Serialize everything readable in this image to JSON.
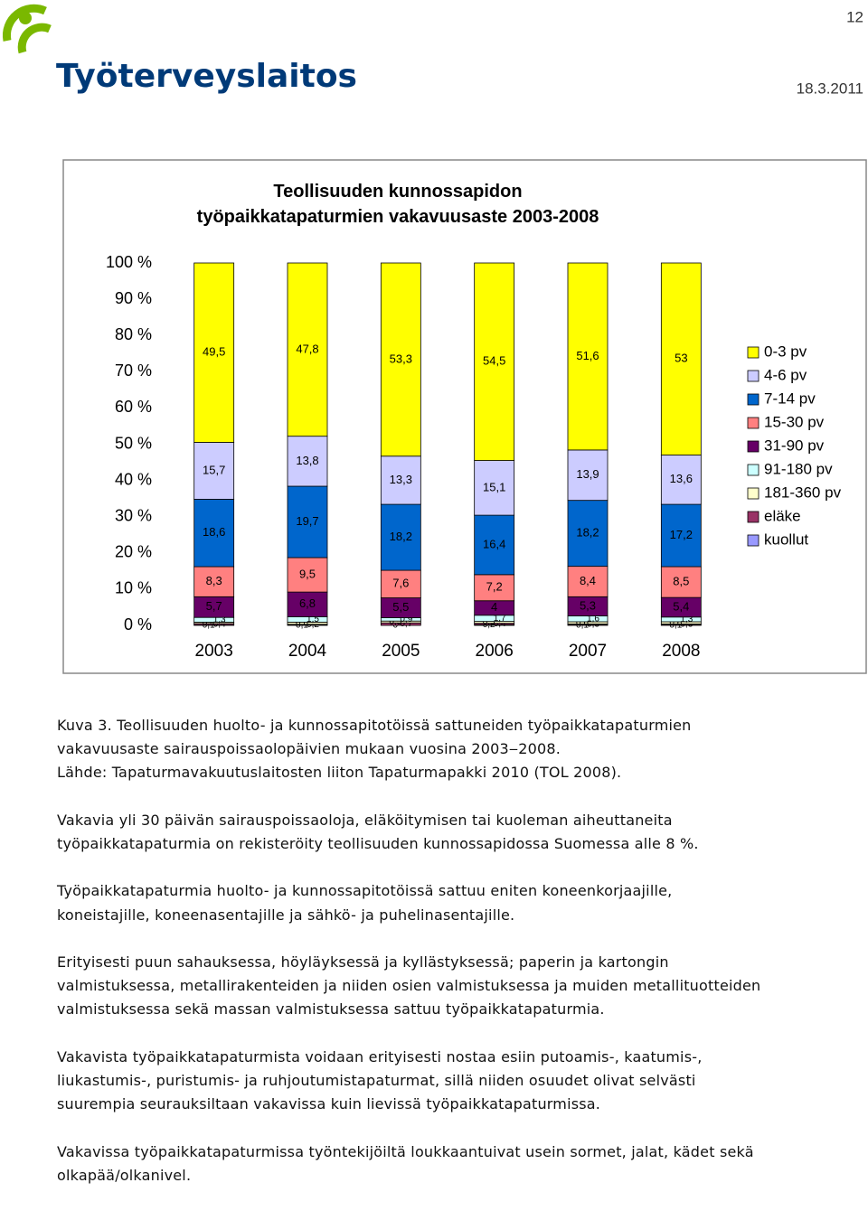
{
  "header": {
    "page_number": "12",
    "logo": "Työterveyslaitos",
    "date": "18.3.2011"
  },
  "chart_data": {
    "type": "stacked-bar",
    "title": "Teollisuuden kunnossapidon työpaikkatapaturmien vakavuusaste 2003-2008",
    "categories": [
      "2003",
      "2004",
      "2005",
      "2006",
      "2007",
      "2008"
    ],
    "ylim": [
      0,
      100
    ],
    "yticks": [
      {
        "value": 0,
        "label": "0 %"
      },
      {
        "value": 10,
        "label": "10 %"
      },
      {
        "value": 20,
        "label": "20 %"
      },
      {
        "value": 30,
        "label": "30 %"
      },
      {
        "value": 40,
        "label": "40 %"
      },
      {
        "value": 50,
        "label": "50 %"
      },
      {
        "value": 60,
        "label": "60 %"
      },
      {
        "value": 70,
        "label": "70 %"
      },
      {
        "value": 80,
        "label": "80 %"
      },
      {
        "value": 90,
        "label": "90 %"
      },
      {
        "value": 100,
        "label": "100 %"
      }
    ],
    "legend": "right",
    "series": [
      {
        "name": "kuollut",
        "color": "#9999ff",
        "values": [
          0.1,
          0.1,
          0,
          0.2,
          0.1,
          0.1
        ],
        "value_labels": [
          "0,1",
          "0,1",
          "0",
          "0,2",
          "0,1",
          "0,1"
        ]
      },
      {
        "name": "eläke",
        "color": "#993366",
        "values": [
          0.4,
          0.2,
          0.7,
          0.4,
          0.3,
          0.3
        ],
        "value_labels": [
          "0,4",
          "0,2",
          "0,7",
          "0,4",
          "0,3",
          "0,3"
        ]
      },
      {
        "name": "181-360 pv",
        "color": "#ffffcc",
        "values": [
          0.4,
          0.6,
          0.5,
          0.5,
          0.6,
          0.6
        ],
        "value_labels": [
          "0,4",
          "0,6",
          "0,5",
          "0,5",
          "0,6",
          "0,6"
        ]
      },
      {
        "name": "91-180 pv",
        "color": "#ccffff",
        "values": [
          1.3,
          1.5,
          0.9,
          1.7,
          1.6,
          1.3
        ],
        "value_labels": [
          "1,3",
          "1,5",
          "0,9",
          "1,7",
          "1,6",
          "1,3"
        ]
      },
      {
        "name": "31-90 pv",
        "color": "#660066",
        "values": [
          5.7,
          6.8,
          5.5,
          4,
          5.3,
          5.4
        ],
        "value_labels": [
          "5,7",
          "6,8",
          "5,5",
          "4",
          "5,3",
          "5,4"
        ]
      },
      {
        "name": "15-30 pv",
        "color": "#ff8080",
        "values": [
          8.3,
          9.5,
          7.6,
          7.2,
          8.4,
          8.5
        ],
        "value_labels": [
          "8,3",
          "9,5",
          "7,6",
          "7,2",
          "8,4",
          "8,5"
        ]
      },
      {
        "name": "7-14 pv",
        "color": "#0066cc",
        "values": [
          18.6,
          19.7,
          18.2,
          16.4,
          18.2,
          17.2
        ],
        "value_labels": [
          "18,6",
          "19,7",
          "18,2",
          "16,4",
          "18,2",
          "17,2"
        ]
      },
      {
        "name": "4-6 pv",
        "color": "#ccccff",
        "values": [
          15.7,
          13.8,
          13.3,
          15.1,
          13.9,
          13.6
        ],
        "value_labels": [
          "15,7",
          "13,8",
          "13,3",
          "15,1",
          "13,9",
          "13,6"
        ]
      },
      {
        "name": "0-3 pv",
        "color": "#ffff00",
        "values": [
          49.5,
          47.8,
          53.3,
          54.5,
          51.6,
          53
        ],
        "value_labels": [
          "49,5",
          "47,8",
          "53,3",
          "54,5",
          "51,6",
          "53"
        ]
      }
    ]
  },
  "paragraphs": [
    [
      "Kuva 3. Teollisuuden huolto- ja kunnossapitotöissä sattuneiden työpaikkatapaturmien",
      "vakavuusaste sairauspoissaolopäivien mukaan vuosina 2003‒2008.",
      "Lähde: Tapaturmavakuutuslaitosten liiton Tapaturmapakki 2010 (TOL 2008)."
    ],
    [
      "Vakavia yli 30 päivän sairauspoissaoloja, eläköitymisen tai kuoleman aiheuttaneita",
      "työpaikkatapaturmia on rekisteröity teollisuuden kunnossapidossa Suomessa alle 8 %."
    ],
    [
      "Työpaikkatapaturmia huolto- ja kunnossapitotöissä sattuu eniten koneenkorjaajille,",
      "koneistajille, koneenasentajille ja sähkö- ja puhelinasentajille."
    ],
    [
      "Erityisesti puun sahauksessa, höyläyksessä ja kyllästyksessä; paperin ja kartongin",
      "valmistuksessa, metallirakenteiden ja niiden osien valmistuksessa ja muiden metallituotteiden",
      "valmistuksessa sekä massan valmistuksessa sattuu työpaikkatapaturmia."
    ],
    [
      "Vakavista työpaikkatapaturmista voidaan erityisesti nostaa esiin putoamis-, kaatumis-,",
      "liukastumis-, puristumis- ja ruhjoutumistapaturmat, sillä niiden osuudet olivat selvästi",
      "suurempia seurauksiltaan vakavissa kuin lievissä työpaikkatapaturmissa."
    ],
    [
      "Vakavissa työpaikkatapaturmissa työntekijöiltä loukkaantuivat usein sormet, jalat, kädet sekä",
      "olkapää/olkanivel."
    ]
  ]
}
